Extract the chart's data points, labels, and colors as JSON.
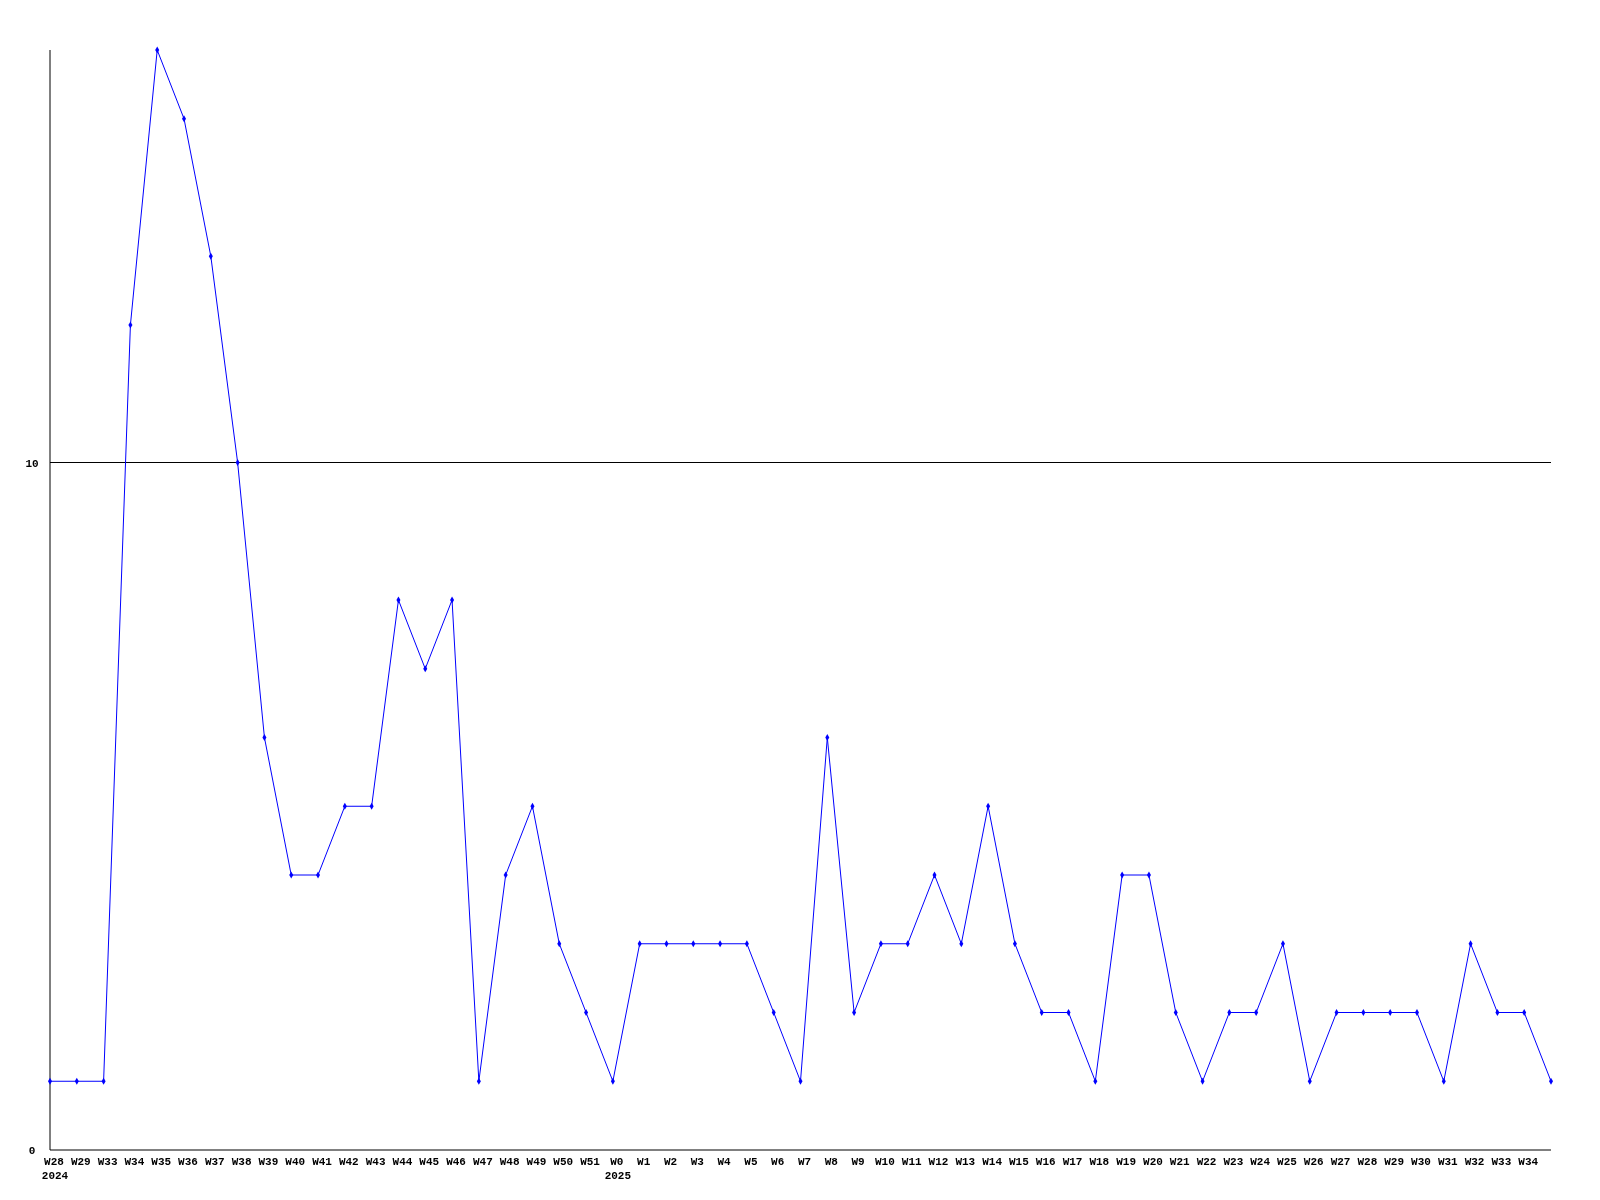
{
  "chart_data": {
    "type": "line",
    "categories": [
      "W28\n2024",
      "W29",
      "W33",
      "W34",
      "W35",
      "W36",
      "W37",
      "W38",
      "W39",
      "W40",
      "W41",
      "W42",
      "W43",
      "W44",
      "W45",
      "W46",
      "W47",
      "W48",
      "W49",
      "W50",
      "W51",
      "W0\n2025",
      "W1",
      "W2",
      "W3",
      "W4",
      "W5",
      "W6",
      "W7",
      "W8",
      "W9",
      "W10",
      "W11",
      "W12",
      "W13",
      "W14",
      "W15",
      "W16",
      "W17",
      "W18",
      "W19",
      "W20",
      "W21",
      "W22",
      "W23",
      "W24",
      "W25",
      "W26",
      "W27",
      "W28",
      "W29",
      "W30",
      "W31",
      "W32",
      "W33",
      "W34",
      null
    ],
    "series": [
      {
        "color": "#0000ff",
        "values": [
          1,
          1,
          1,
          12,
          16,
          15,
          13,
          10,
          6,
          4,
          4,
          5,
          5,
          8,
          7,
          8,
          1,
          4,
          5,
          3,
          2,
          1,
          3,
          3,
          3,
          3,
          3,
          2,
          1,
          6,
          2,
          3,
          3,
          4,
          3,
          5,
          3,
          2,
          2,
          1,
          4,
          4,
          2,
          1,
          2,
          2,
          3,
          1,
          2,
          2,
          2,
          2,
          1,
          3,
          2,
          2,
          1
        ]
      }
    ],
    "ylim": [
      0,
      16
    ],
    "yticks": [
      0,
      10
    ],
    "grid": "y",
    "marker": "diamond",
    "line_style": "solid"
  }
}
